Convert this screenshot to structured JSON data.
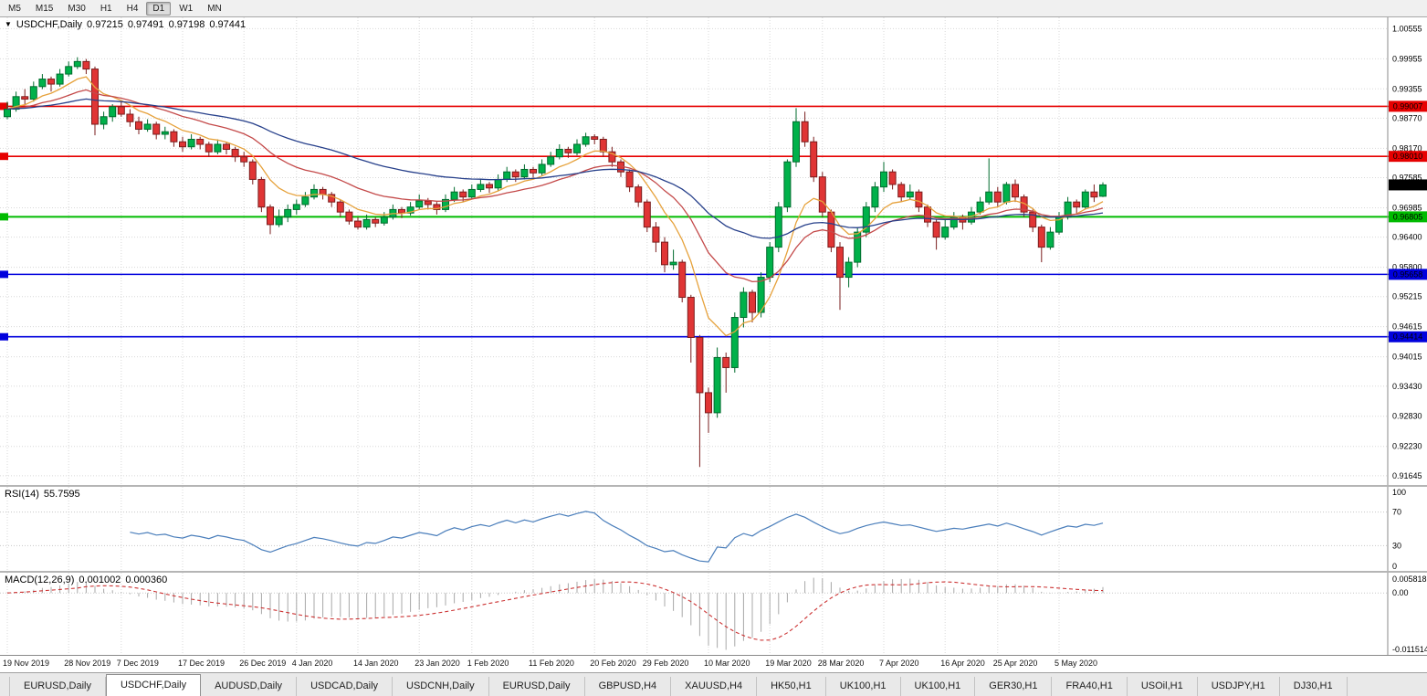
{
  "toolbar": {
    "timeframes": [
      "M5",
      "M15",
      "M30",
      "H1",
      "H4",
      "D1",
      "W1",
      "MN"
    ],
    "active_timeframe": "D1"
  },
  "icons": {
    "title_arrow": "▼"
  },
  "chart": {
    "title": "USDCHF,Daily",
    "ohlc": {
      "open": "0.97215",
      "high": "0.97491",
      "low": "0.97198",
      "close": "0.97441"
    }
  },
  "chart_data": {
    "type": "candlestick",
    "symbol": "USDCHF",
    "timeframe": "Daily",
    "ylim": [
      0.9146,
      1.0078
    ],
    "y_ticks": [
      "1.00555",
      "0.99955",
      "0.99355",
      "0.98770",
      "0.98170",
      "0.97585",
      "0.96985",
      "0.96400",
      "0.95800",
      "0.95215",
      "0.94615",
      "0.94015",
      "0.93430",
      "0.92830",
      "0.92230",
      "0.91645"
    ],
    "x_tick_labels": [
      "19 Nov 2019",
      "28 Nov 2019",
      "7 Dec 2019",
      "17 Dec 2019",
      "26 Dec 2019",
      "4 Jan 2020",
      "14 Jan 2020",
      "23 Jan 2020",
      "1 Feb 2020",
      "11 Feb 2020",
      "20 Feb 2020",
      "29 Feb 2020",
      "10 Mar 2020",
      "19 Mar 2020",
      "28 Mar 2020",
      "7 Apr 2020",
      "16 Apr 2020",
      "25 Apr 2020",
      "5 May 2020"
    ],
    "x_tick_indices": [
      0,
      7,
      13,
      20,
      27,
      33,
      40,
      47,
      53,
      60,
      67,
      73,
      80,
      87,
      93,
      100,
      107,
      113,
      120
    ],
    "candles": [
      [
        0.988,
        0.991,
        0.9875,
        0.9895
      ],
      [
        0.9895,
        0.993,
        0.989,
        0.992
      ],
      [
        0.992,
        0.9935,
        0.9905,
        0.9915
      ],
      [
        0.9915,
        0.995,
        0.991,
        0.994
      ],
      [
        0.994,
        0.9965,
        0.9935,
        0.9955
      ],
      [
        0.9955,
        0.996,
        0.993,
        0.9945
      ],
      [
        0.9945,
        0.9975,
        0.994,
        0.9965
      ],
      [
        0.9965,
        0.999,
        0.996,
        0.998
      ],
      [
        0.998,
        0.99985,
        0.9975,
        0.999
      ],
      [
        0.999,
        0.9995,
        0.9965,
        0.9975
      ],
      [
        0.9975,
        0.998,
        0.9843,
        0.9865
      ],
      [
        0.9865,
        0.989,
        0.9855,
        0.988
      ],
      [
        0.988,
        0.9905,
        0.987,
        0.99
      ],
      [
        0.99,
        0.991,
        0.988,
        0.9885
      ],
      [
        0.9885,
        0.9895,
        0.986,
        0.987
      ],
      [
        0.987,
        0.988,
        0.9845,
        0.9855
      ],
      [
        0.9855,
        0.9875,
        0.985,
        0.9865
      ],
      [
        0.9865,
        0.987,
        0.9835,
        0.9845
      ],
      [
        0.9845,
        0.986,
        0.9835,
        0.985
      ],
      [
        0.985,
        0.9855,
        0.982,
        0.983
      ],
      [
        0.983,
        0.984,
        0.981,
        0.982
      ],
      [
        0.982,
        0.9845,
        0.9815,
        0.9835
      ],
      [
        0.9835,
        0.984,
        0.9815,
        0.9825
      ],
      [
        0.9825,
        0.983,
        0.98,
        0.981
      ],
      [
        0.981,
        0.9835,
        0.9805,
        0.9825
      ],
      [
        0.9825,
        0.983,
        0.9805,
        0.9815
      ],
      [
        0.9815,
        0.982,
        0.979,
        0.98
      ],
      [
        0.98,
        0.981,
        0.978,
        0.979
      ],
      [
        0.979,
        0.9795,
        0.9745,
        0.9755
      ],
      [
        0.9755,
        0.976,
        0.969,
        0.97
      ],
      [
        0.97,
        0.9705,
        0.9646,
        0.9665
      ],
      [
        0.9665,
        0.9695,
        0.966,
        0.968
      ],
      [
        0.968,
        0.9705,
        0.967,
        0.9695
      ],
      [
        0.9695,
        0.9715,
        0.9685,
        0.9705
      ],
      [
        0.9705,
        0.973,
        0.97,
        0.972
      ],
      [
        0.972,
        0.9745,
        0.9715,
        0.9735
      ],
      [
        0.9735,
        0.974,
        0.9715,
        0.9725
      ],
      [
        0.9725,
        0.973,
        0.97,
        0.971
      ],
      [
        0.971,
        0.9715,
        0.968,
        0.969
      ],
      [
        0.969,
        0.9695,
        0.9665,
        0.9672
      ],
      [
        0.9672,
        0.968,
        0.9655,
        0.966
      ],
      [
        0.966,
        0.9685,
        0.9655,
        0.9675
      ],
      [
        0.9675,
        0.968,
        0.966,
        0.9668
      ],
      [
        0.9668,
        0.969,
        0.9663,
        0.968
      ],
      [
        0.968,
        0.9705,
        0.9675,
        0.9695
      ],
      [
        0.9695,
        0.97,
        0.9678,
        0.9688
      ],
      [
        0.9688,
        0.971,
        0.9683,
        0.97
      ],
      [
        0.97,
        0.9725,
        0.9695,
        0.9712
      ],
      [
        0.9712,
        0.9718,
        0.9695,
        0.9705
      ],
      [
        0.9705,
        0.971,
        0.9685,
        0.9695
      ],
      [
        0.9695,
        0.9725,
        0.969,
        0.9715
      ],
      [
        0.9715,
        0.974,
        0.971,
        0.973
      ],
      [
        0.973,
        0.9735,
        0.971,
        0.972
      ],
      [
        0.972,
        0.9745,
        0.9715,
        0.9735
      ],
      [
        0.9735,
        0.9755,
        0.973,
        0.9745
      ],
      [
        0.9745,
        0.975,
        0.9728,
        0.9738
      ],
      [
        0.9738,
        0.9765,
        0.9733,
        0.9755
      ],
      [
        0.9755,
        0.978,
        0.975,
        0.977
      ],
      [
        0.977,
        0.9775,
        0.975,
        0.976
      ],
      [
        0.976,
        0.9785,
        0.9755,
        0.9775
      ],
      [
        0.9775,
        0.978,
        0.9758,
        0.9768
      ],
      [
        0.9768,
        0.9795,
        0.9763,
        0.9785
      ],
      [
        0.9785,
        0.981,
        0.978,
        0.98
      ],
      [
        0.98,
        0.9825,
        0.9795,
        0.9815
      ],
      [
        0.9815,
        0.982,
        0.9798,
        0.9808
      ],
      [
        0.9808,
        0.9835,
        0.9803,
        0.9825
      ],
      [
        0.9825,
        0.9848,
        0.982,
        0.984
      ],
      [
        0.984,
        0.9845,
        0.9825,
        0.9835
      ],
      [
        0.9835,
        0.984,
        0.98,
        0.981
      ],
      [
        0.981,
        0.982,
        0.978,
        0.979
      ],
      [
        0.979,
        0.9795,
        0.976,
        0.977
      ],
      [
        0.977,
        0.9775,
        0.973,
        0.974
      ],
      [
        0.974,
        0.9745,
        0.97,
        0.971
      ],
      [
        0.971,
        0.9715,
        0.965,
        0.966
      ],
      [
        0.966,
        0.967,
        0.961,
        0.963
      ],
      [
        0.963,
        0.964,
        0.957,
        0.9585
      ],
      [
        0.9585,
        0.9615,
        0.9575,
        0.959
      ],
      [
        0.959,
        0.9595,
        0.951,
        0.952
      ],
      [
        0.952,
        0.9525,
        0.939,
        0.944
      ],
      [
        0.944,
        0.9445,
        0.9182,
        0.933
      ],
      [
        0.933,
        0.934,
        0.925,
        0.929
      ],
      [
        0.929,
        0.942,
        0.928,
        0.94
      ],
      [
        0.94,
        0.941,
        0.933,
        0.938
      ],
      [
        0.938,
        0.949,
        0.937,
        0.948
      ],
      [
        0.948,
        0.954,
        0.946,
        0.953
      ],
      [
        0.953,
        0.9535,
        0.947,
        0.949
      ],
      [
        0.949,
        0.957,
        0.948,
        0.956
      ],
      [
        0.956,
        0.963,
        0.955,
        0.962
      ],
      [
        0.962,
        0.971,
        0.961,
        0.97
      ],
      [
        0.97,
        0.9795,
        0.969,
        0.979
      ],
      [
        0.979,
        0.9897,
        0.978,
        0.987
      ],
      [
        0.987,
        0.989,
        0.982,
        0.983
      ],
      [
        0.983,
        0.984,
        0.975,
        0.976
      ],
      [
        0.976,
        0.977,
        0.968,
        0.969
      ],
      [
        0.969,
        0.9695,
        0.961,
        0.962
      ],
      [
        0.962,
        0.963,
        0.9495,
        0.956
      ],
      [
        0.956,
        0.96,
        0.954,
        0.959
      ],
      [
        0.959,
        0.966,
        0.958,
        0.965
      ],
      [
        0.965,
        0.971,
        0.964,
        0.97
      ],
      [
        0.97,
        0.975,
        0.969,
        0.974
      ],
      [
        0.974,
        0.979,
        0.973,
        0.977
      ],
      [
        0.977,
        0.9775,
        0.9735,
        0.9745
      ],
      [
        0.9745,
        0.975,
        0.971,
        0.972
      ],
      [
        0.972,
        0.9745,
        0.9715,
        0.973
      ],
      [
        0.973,
        0.9735,
        0.969,
        0.97
      ],
      [
        0.97,
        0.9705,
        0.966,
        0.967
      ],
      [
        0.967,
        0.9675,
        0.9615,
        0.964
      ],
      [
        0.964,
        0.9675,
        0.9635,
        0.966
      ],
      [
        0.966,
        0.969,
        0.9655,
        0.968
      ],
      [
        0.968,
        0.9685,
        0.9655,
        0.967
      ],
      [
        0.967,
        0.97,
        0.9665,
        0.969
      ],
      [
        0.969,
        0.972,
        0.9685,
        0.971
      ],
      [
        0.971,
        0.9797,
        0.9705,
        0.973
      ],
      [
        0.973,
        0.974,
        0.97,
        0.971
      ],
      [
        0.971,
        0.975,
        0.9705,
        0.9745
      ],
      [
        0.9745,
        0.9755,
        0.971,
        0.972
      ],
      [
        0.972,
        0.9725,
        0.968,
        0.969
      ],
      [
        0.969,
        0.9695,
        0.965,
        0.966
      ],
      [
        0.966,
        0.9665,
        0.959,
        0.962
      ],
      [
        0.962,
        0.966,
        0.9615,
        0.965
      ],
      [
        0.965,
        0.969,
        0.9645,
        0.968
      ],
      [
        0.968,
        0.972,
        0.9675,
        0.971
      ],
      [
        0.971,
        0.9715,
        0.9685,
        0.97
      ],
      [
        0.97,
        0.9735,
        0.9695,
        0.973
      ],
      [
        0.973,
        0.9745,
        0.971,
        0.972
      ],
      [
        0.97215,
        0.97491,
        0.97198,
        0.97441
      ]
    ],
    "moving_averages": [
      {
        "name": "fast-ema",
        "type": "ema",
        "period": 8,
        "color": "#e6a23c"
      },
      {
        "name": "mid-ema",
        "type": "ema",
        "period": 20,
        "color": "#c44a4a"
      },
      {
        "name": "slow-ema",
        "type": "ema",
        "period": 45,
        "color": "#27408b"
      }
    ],
    "levels": [
      {
        "price": 0.99007,
        "label": "0.99007",
        "color": "#e60000",
        "width": 1.6
      },
      {
        "price": 0.9801,
        "label": "0.98010",
        "color": "#e60000",
        "width": 1.6
      },
      {
        "price": 0.96805,
        "label": "0.96805",
        "color": "#00bb00",
        "width": 2
      },
      {
        "price": 0.95658,
        "label": "0.95658",
        "color": "#0000dd",
        "width": 1.6
      },
      {
        "price": 0.94414,
        "label": "0.94414",
        "color": "#0000dd",
        "width": 1.6
      }
    ],
    "current_price": {
      "value": 0.97441,
      "label": "0.97441",
      "bg": "#000000"
    },
    "colors": {
      "bull": "#00b14a",
      "bull_border": "#006b2d",
      "bear": "#e03535",
      "bear_border": "#7a1d1d",
      "grid": "#d8d8d8",
      "axis_line": "#8a8a8a"
    }
  },
  "rsi": {
    "label": "RSI(14)",
    "value": "55.7595",
    "period": 14,
    "levels": [
      "100",
      "70",
      "30",
      "0"
    ],
    "line_color": "#4a7ebb"
  },
  "macd": {
    "label": "MACD(12,26,9)",
    "main_value": "0.001002",
    "signal_value": "0.000360",
    "fast": 12,
    "slow": 26,
    "signal": 9,
    "y_ticks": [
      "0.005818",
      "0.00",
      "-0.011514"
    ],
    "hist_color": "#a8a8a8",
    "signal_color": "#cc3333"
  },
  "tabs": {
    "items": [
      {
        "label": "EURUSD,Daily"
      },
      {
        "label": "USDCHF,Daily"
      },
      {
        "label": "AUDUSD,Daily"
      },
      {
        "label": "USDCAD,Daily"
      },
      {
        "label": "USDCNH,Daily"
      },
      {
        "label": "EURUSD,Daily"
      },
      {
        "label": "GBPUSD,H4"
      },
      {
        "label": "XAUUSD,H4"
      },
      {
        "label": "HK50,H1"
      },
      {
        "label": "UK100,H1"
      },
      {
        "label": "UK100,H1"
      },
      {
        "label": "GER30,H1"
      },
      {
        "label": "FRA40,H1"
      },
      {
        "label": "USOil,H1"
      },
      {
        "label": "USDJPY,H1"
      },
      {
        "label": "DJ30,H1"
      }
    ],
    "active_index": 1
  }
}
